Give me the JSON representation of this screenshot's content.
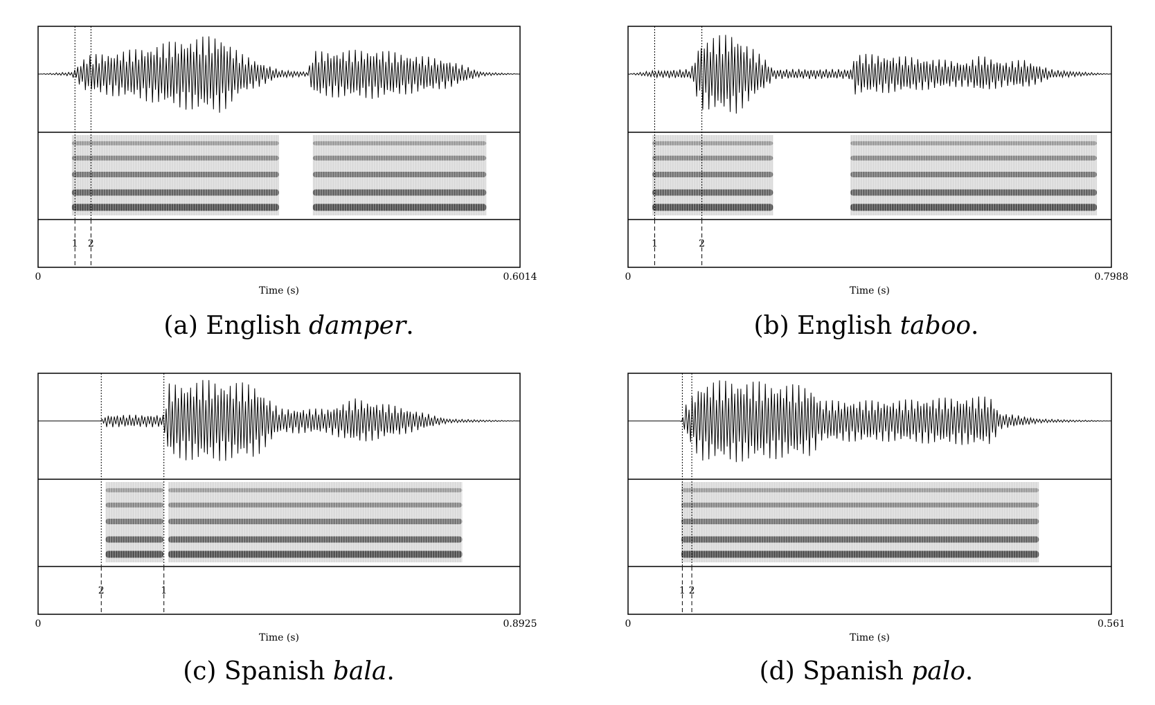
{
  "figures": [
    {
      "id": "a",
      "caption_prefix": "(a) English ",
      "caption_word": "damper",
      "caption_suffix": ".",
      "time_start": "0",
      "time_end": "0.6014",
      "duration": 0.6014,
      "xlabel": "Time (s)",
      "marks": [
        {
          "label": "1",
          "t": 0.046
        },
        {
          "label": "2",
          "t": 0.066
        }
      ],
      "mark_order": "1 2"
    },
    {
      "id": "b",
      "caption_prefix": "(b) English ",
      "caption_word": "taboo",
      "caption_suffix": ".",
      "time_start": "0",
      "time_end": "0.7988",
      "duration": 0.7988,
      "xlabel": "Time (s)",
      "marks": [
        {
          "label": "1",
          "t": 0.044
        },
        {
          "label": "2",
          "t": 0.122
        }
      ],
      "mark_order": "1 2"
    },
    {
      "id": "c",
      "caption_prefix": "(c) Spanish ",
      "caption_word": "bala",
      "caption_suffix": ".",
      "time_start": "0",
      "time_end": "0.8925",
      "duration": 0.8925,
      "xlabel": "Time (s)",
      "marks": [
        {
          "label": "2",
          "t": 0.117
        },
        {
          "label": "1",
          "t": 0.233
        }
      ],
      "mark_order": "2 1"
    },
    {
      "id": "d",
      "caption_prefix": "(d) Spanish ",
      "caption_word": "palo",
      "caption_suffix": ".",
      "time_start": "0",
      "time_end": "0.561",
      "duration": 0.561,
      "xlabel": "Time (s)",
      "marks": [
        {
          "label": "1",
          "t": 0.063
        },
        {
          "label": "2",
          "t": 0.074
        }
      ],
      "mark_order": "1 2"
    }
  ]
}
